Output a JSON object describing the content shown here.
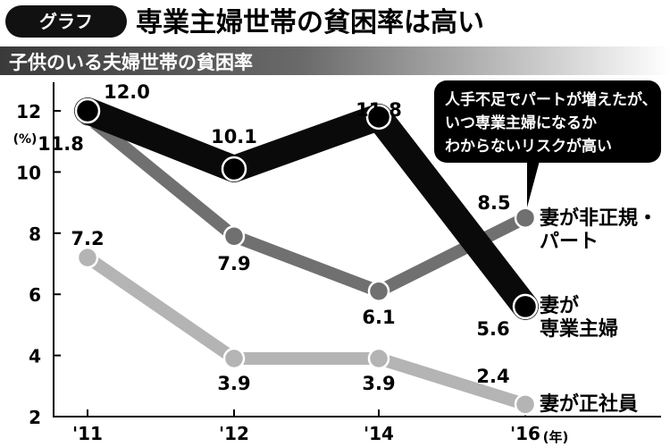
{
  "header": {
    "badge": "グラフ",
    "title": "専業主婦世帯の貧困率は高い"
  },
  "chart_data": {
    "type": "line",
    "title": "専業主婦世帯の貧困率は高い",
    "subtitle": "子供のいる夫婦世帯の貧困率",
    "ylabel_unit": "(%)",
    "xlabel_unit": "(年)",
    "x": [
      "'11",
      "'12",
      "'14",
      "'16"
    ],
    "yticks": [
      2,
      4,
      6,
      8,
      10,
      12
    ],
    "ylim": [
      2,
      12
    ],
    "grid": false,
    "series": [
      {
        "name": "妻が専業主婦",
        "label_lines": [
          "妻が",
          "専業主婦"
        ],
        "values": [
          12.0,
          10.1,
          11.8,
          5.6
        ],
        "color": "#0a0a0a"
      },
      {
        "name": "妻が非正規・パート",
        "label_lines": [
          "妻が非正規・",
          "パート"
        ],
        "values": [
          11.8,
          7.9,
          6.1,
          8.5
        ],
        "color": "#707070"
      },
      {
        "name": "妻が正社員",
        "label_lines": [
          "妻が正社員"
        ],
        "values": [
          7.2,
          3.9,
          3.9,
          2.4
        ],
        "color": "#b4b4b4"
      }
    ],
    "annotation": {
      "lines": [
        "人手不足でパートが増えたが、",
        "いつ専業主婦になるか",
        "わからないリスクが高い"
      ]
    }
  }
}
